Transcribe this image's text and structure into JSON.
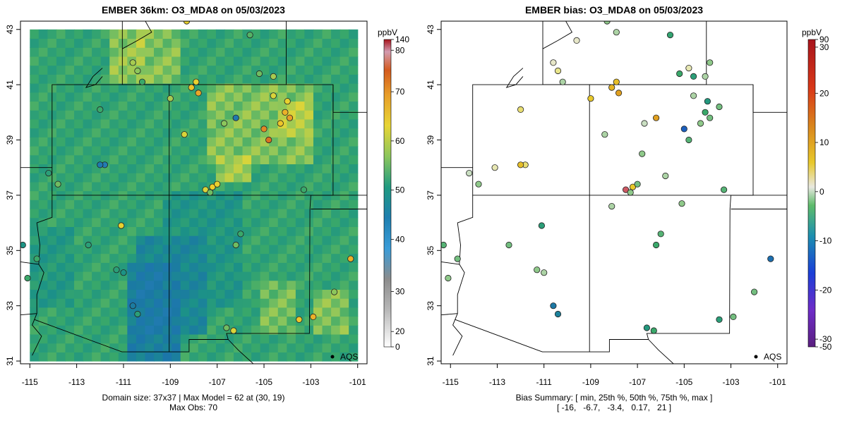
{
  "chart_data": [
    {
      "type": "heatmap",
      "title": "EMBER 36km: O3_MDA8 on 05/03/2023",
      "unit": "ppbV",
      "x_ticks": [
        "-115",
        "-113",
        "-111",
        "-109",
        "-107",
        "-105",
        "-103",
        "-101"
      ],
      "y_ticks": [
        "31",
        "33",
        "35",
        "37",
        "39",
        "41",
        "43"
      ],
      "xlim": [
        -115.4,
        -100.6
      ],
      "ylim": [
        30.9,
        43.3
      ],
      "colorbar_ticks": [
        "0",
        "20",
        "30",
        "40",
        "50",
        "60",
        "70",
        "80",
        "140"
      ],
      "legend_label": "AQS",
      "caption_line1": "Domain size: 37x37 | Max Model = 62 at (30, 19)",
      "caption_line2": "Max Obs: 70",
      "grid_regions": [
        {
          "lon": [
            -115,
            -101
          ],
          "lat": [
            31,
            43
          ],
          "value": 51
        },
        {
          "lon": [
            -111,
            -108.5
          ],
          "lat": [
            31,
            34.5
          ],
          "value": 38
        },
        {
          "lon": [
            -110.5,
            -107.5
          ],
          "lat": [
            32,
            35.5
          ],
          "value": 41
        },
        {
          "lon": [
            -109.5,
            -106
          ],
          "lat": [
            33,
            37
          ],
          "value": 46
        },
        {
          "lon": [
            -115,
            -113
          ],
          "lat": [
            33,
            36
          ],
          "value": 47
        },
        {
          "lon": [
            -110.5,
            -108.5
          ],
          "lat": [
            41,
            43
          ],
          "value": 58
        },
        {
          "lon": [
            -107.5,
            -103
          ],
          "lat": [
            38,
            41
          ],
          "value": 58
        },
        {
          "lon": [
            -104.5,
            -103
          ],
          "lat": [
            39,
            40.5
          ],
          "value": 61
        },
        {
          "lon": [
            -107,
            -105.5
          ],
          "lat": [
            37.5,
            38.5
          ],
          "value": 60
        },
        {
          "lon": [
            -105,
            -103.5
          ],
          "lat": [
            32,
            34
          ],
          "value": 57
        },
        {
          "lon": [
            -103,
            -101.5
          ],
          "lat": [
            32,
            33.5
          ],
          "value": 58
        },
        {
          "lon": [
            -111.5,
            -110
          ],
          "lat": [
            41,
            43
          ],
          "value": 59
        }
      ],
      "stations": [
        {
          "lon": -110.4,
          "lat": 41.5,
          "value": 55
        },
        {
          "lon": -110.2,
          "lat": 41.1,
          "value": 52
        },
        {
          "lon": -110.6,
          "lat": 41.8,
          "value": 56
        },
        {
          "lon": -108.1,
          "lat": 40.9,
          "value": 62
        },
        {
          "lon": -107.8,
          "lat": 40.7,
          "value": 65
        },
        {
          "lon": -107.9,
          "lat": 41.1,
          "value": 60
        },
        {
          "lon": -104.1,
          "lat": 40.0,
          "value": 64
        },
        {
          "lon": -103.9,
          "lat": 39.8,
          "value": 66
        },
        {
          "lon": -104.3,
          "lat": 39.6,
          "value": 62
        },
        {
          "lon": -104.0,
          "lat": 40.4,
          "value": 60
        },
        {
          "lon": -104.6,
          "lat": 40.6,
          "value": 58
        },
        {
          "lon": -105.0,
          "lat": 39.4,
          "value": 68
        },
        {
          "lon": -104.8,
          "lat": 39.0,
          "value": 70
        },
        {
          "lon": -106.2,
          "lat": 39.8,
          "value": 42
        },
        {
          "lon": -106.7,
          "lat": 39.6,
          "value": 55
        },
        {
          "lon": -107.2,
          "lat": 37.3,
          "value": 61
        },
        {
          "lon": -107.0,
          "lat": 37.4,
          "value": 60
        },
        {
          "lon": -107.5,
          "lat": 37.2,
          "value": 58
        },
        {
          "lon": -107.3,
          "lat": 37.1,
          "value": 54
        },
        {
          "lon": -111.8,
          "lat": 38.1,
          "value": 41
        },
        {
          "lon": -112.0,
          "lat": 38.1,
          "value": 42
        },
        {
          "lon": -111.1,
          "lat": 35.9,
          "value": 60
        },
        {
          "lon": -112.5,
          "lat": 35.2,
          "value": 50
        },
        {
          "lon": -111.0,
          "lat": 34.2,
          "value": 48
        },
        {
          "lon": -111.3,
          "lat": 34.3,
          "value": 50
        },
        {
          "lon": -110.6,
          "lat": 33.0,
          "value": 44
        },
        {
          "lon": -110.4,
          "lat": 32.7,
          "value": 50
        },
        {
          "lon": -106.3,
          "lat": 32.1,
          "value": 58
        },
        {
          "lon": -106.6,
          "lat": 32.2,
          "value": 54
        },
        {
          "lon": -103.5,
          "lat": 32.5,
          "value": 62
        },
        {
          "lon": -102.9,
          "lat": 32.6,
          "value": 64
        },
        {
          "lon": -101.3,
          "lat": 34.7,
          "value": 64
        },
        {
          "lon": -113.8,
          "lat": 37.4,
          "value": 54
        },
        {
          "lon": -114.2,
          "lat": 37.8,
          "value": 50
        },
        {
          "lon": -115.3,
          "lat": 35.2,
          "value": 48
        },
        {
          "lon": -115.1,
          "lat": 34.0,
          "value": 52
        },
        {
          "lon": -114.7,
          "lat": 34.7,
          "value": 52
        },
        {
          "lon": -106.0,
          "lat": 35.6,
          "value": 52
        },
        {
          "lon": -106.2,
          "lat": 35.2,
          "value": 54
        },
        {
          "lon": -112.0,
          "lat": 40.1,
          "value": 52
        },
        {
          "lon": -109.0,
          "lat": 40.5,
          "value": 56
        },
        {
          "lon": -108.4,
          "lat": 39.2,
          "value": 58
        },
        {
          "lon": -108.3,
          "lat": 43.3,
          "value": 60
        },
        {
          "lon": -105.2,
          "lat": 41.4,
          "value": 54
        },
        {
          "lon": -104.6,
          "lat": 41.3,
          "value": 56
        },
        {
          "lon": -105.6,
          "lat": 42.8,
          "value": 53
        },
        {
          "lon": -103.3,
          "lat": 37.2,
          "value": 52
        },
        {
          "lon": -102.0,
          "lat": 33.5,
          "value": 55
        }
      ]
    },
    {
      "type": "heatmap",
      "title": "EMBER bias: O3_MDA8 on 05/03/2023",
      "unit": "ppbV",
      "x_ticks": [
        "-115",
        "-113",
        "-111",
        "-109",
        "-107",
        "-105",
        "-103",
        "-101"
      ],
      "y_ticks": [
        "31",
        "33",
        "35",
        "37",
        "39",
        "41",
        "43"
      ],
      "xlim": [
        -115.4,
        -100.6
      ],
      "ylim": [
        30.9,
        43.3
      ],
      "colorbar_ticks": [
        "-50",
        "-30",
        "-20",
        "-10",
        "0",
        "10",
        "20",
        "30",
        "90"
      ],
      "legend_label": "AQS",
      "caption_line1": "Bias Summary: [ min, 25th %, 50th %, 75th %, max ]",
      "caption_line2": "[ -16,   -6.7,   -3.4,   0.17,   21 ]",
      "stations": [
        {
          "lon": -110.4,
          "lat": 41.5,
          "value": 4
        },
        {
          "lon": -110.2,
          "lat": 41.1,
          "value": -2
        },
        {
          "lon": -110.6,
          "lat": 41.8,
          "value": 1
        },
        {
          "lon": -108.1,
          "lat": 40.9,
          "value": 10
        },
        {
          "lon": -107.8,
          "lat": 40.7,
          "value": 12
        },
        {
          "lon": -107.9,
          "lat": 41.1,
          "value": 9
        },
        {
          "lon": -104.1,
          "lat": 40.0,
          "value": -6
        },
        {
          "lon": -103.9,
          "lat": 39.8,
          "value": -4
        },
        {
          "lon": -104.3,
          "lat": 39.6,
          "value": -3
        },
        {
          "lon": -104.0,
          "lat": 40.4,
          "value": -9
        },
        {
          "lon": -104.6,
          "lat": 40.6,
          "value": -2
        },
        {
          "lon": -105.0,
          "lat": 39.4,
          "value": -16
        },
        {
          "lon": -104.8,
          "lat": 39.0,
          "value": -5
        },
        {
          "lon": -106.2,
          "lat": 39.8,
          "value": 12
        },
        {
          "lon": -106.7,
          "lat": 39.6,
          "value": -1
        },
        {
          "lon": -107.2,
          "lat": 37.3,
          "value": 8
        },
        {
          "lon": -107.0,
          "lat": 37.4,
          "value": -4
        },
        {
          "lon": -107.5,
          "lat": 37.2,
          "value": 21
        },
        {
          "lon": -107.3,
          "lat": 37.1,
          "value": -3
        },
        {
          "lon": -111.8,
          "lat": 38.1,
          "value": 5
        },
        {
          "lon": -112.0,
          "lat": 38.1,
          "value": 9
        },
        {
          "lon": -111.1,
          "lat": 35.9,
          "value": -8
        },
        {
          "lon": -112.5,
          "lat": 35.2,
          "value": -4
        },
        {
          "lon": -111.0,
          "lat": 34.2,
          "value": -2
        },
        {
          "lon": -111.3,
          "lat": 34.3,
          "value": -3
        },
        {
          "lon": -110.6,
          "lat": 33.0,
          "value": -13
        },
        {
          "lon": -110.4,
          "lat": 32.7,
          "value": -12
        },
        {
          "lon": -106.3,
          "lat": 32.1,
          "value": -6
        },
        {
          "lon": -106.6,
          "lat": 32.2,
          "value": -9
        },
        {
          "lon": -103.5,
          "lat": 32.5,
          "value": -8
        },
        {
          "lon": -102.9,
          "lat": 32.6,
          "value": -4
        },
        {
          "lon": -101.3,
          "lat": 34.7,
          "value": -14
        },
        {
          "lon": -113.8,
          "lat": 37.4,
          "value": -3
        },
        {
          "lon": -114.2,
          "lat": 37.8,
          "value": -1
        },
        {
          "lon": -115.3,
          "lat": 35.2,
          "value": -5
        },
        {
          "lon": -115.1,
          "lat": 34.0,
          "value": -3
        },
        {
          "lon": -114.7,
          "lat": 34.7,
          "value": -4
        },
        {
          "lon": -106.0,
          "lat": 35.6,
          "value": -5
        },
        {
          "lon": -106.2,
          "lat": 35.2,
          "value": -6
        },
        {
          "lon": -112.0,
          "lat": 40.1,
          "value": 5
        },
        {
          "lon": -109.0,
          "lat": 40.5,
          "value": 8
        },
        {
          "lon": -108.4,
          "lat": 39.2,
          "value": -2
        },
        {
          "lon": -108.3,
          "lat": 43.3,
          "value": -3
        },
        {
          "lon": -105.2,
          "lat": 41.4,
          "value": -6
        },
        {
          "lon": -104.6,
          "lat": 41.3,
          "value": -8
        },
        {
          "lon": -105.6,
          "lat": 42.8,
          "value": -7
        },
        {
          "lon": -103.3,
          "lat": 37.2,
          "value": -5
        },
        {
          "lon": -102.0,
          "lat": 33.5,
          "value": -4
        },
        {
          "lon": -104.1,
          "lat": 41.3,
          "value": -2
        },
        {
          "lon": -103.5,
          "lat": 40.2,
          "value": -4
        },
        {
          "lon": -104.8,
          "lat": 41.6,
          "value": 2
        },
        {
          "lon": -109.6,
          "lat": 42.6,
          "value": 1
        },
        {
          "lon": -107.9,
          "lat": 42.9,
          "value": -2
        },
        {
          "lon": -103.9,
          "lat": 41.8,
          "value": -3
        },
        {
          "lon": -106.8,
          "lat": 38.5,
          "value": -3
        },
        {
          "lon": -105.8,
          "lat": 37.7,
          "value": -2
        },
        {
          "lon": -105.1,
          "lat": 36.7,
          "value": -3
        },
        {
          "lon": -108.1,
          "lat": 36.6,
          "value": -2
        },
        {
          "lon": -113.1,
          "lat": 38.0,
          "value": 2
        }
      ]
    }
  ]
}
